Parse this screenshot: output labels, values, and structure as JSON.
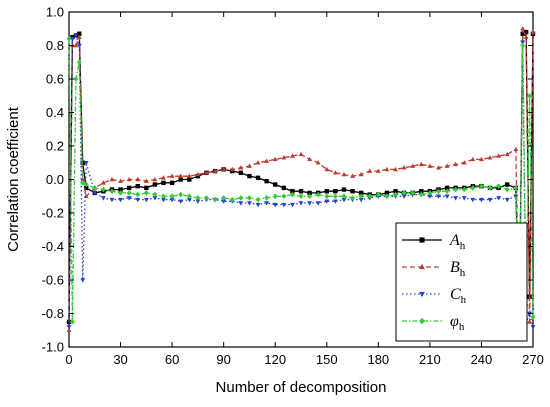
{
  "chart_data": {
    "type": "line",
    "xlabel": "Number of decomposition",
    "ylabel": "Correlation coefficient",
    "xlim": [
      0,
      270
    ],
    "ylim": [
      -1.0,
      1.0
    ],
    "xticks": [
      "0",
      "30",
      "60",
      "90",
      "120",
      "150",
      "180",
      "210",
      "240",
      "270"
    ],
    "yticks": [
      "1.0",
      "0.8",
      "0.6",
      "0.4",
      "0.2",
      "0.0",
      "-0.2",
      "-0.4",
      "-0.6",
      "-0.8",
      "-1.0"
    ],
    "grid": false,
    "legend_position": "bottom-right",
    "series": [
      {
        "name": "A",
        "name_sub": "h",
        "color": "#000000",
        "line_style": "solid",
        "marker": "square",
        "x": [
          0,
          2,
          4,
          6,
          8,
          10,
          15,
          20,
          25,
          30,
          35,
          40,
          45,
          50,
          55,
          60,
          65,
          70,
          75,
          80,
          85,
          90,
          95,
          100,
          105,
          110,
          115,
          120,
          125,
          130,
          135,
          140,
          145,
          150,
          155,
          160,
          165,
          170,
          175,
          180,
          185,
          190,
          195,
          200,
          205,
          210,
          215,
          220,
          225,
          230,
          235,
          240,
          245,
          250,
          255,
          260,
          262,
          264,
          266,
          268,
          270
        ],
        "y": [
          -0.85,
          0.85,
          0.86,
          0.87,
          0.1,
          -0.05,
          -0.08,
          -0.07,
          -0.06,
          -0.06,
          -0.05,
          -0.04,
          -0.05,
          -0.03,
          -0.02,
          -0.02,
          0.0,
          0.0,
          0.02,
          0.04,
          0.05,
          0.06,
          0.05,
          0.04,
          0.02,
          0.01,
          -0.01,
          -0.03,
          -0.05,
          -0.07,
          -0.07,
          -0.08,
          -0.08,
          -0.07,
          -0.07,
          -0.06,
          -0.07,
          -0.08,
          -0.09,
          -0.09,
          -0.08,
          -0.07,
          -0.08,
          -0.08,
          -0.07,
          -0.07,
          -0.06,
          -0.05,
          -0.05,
          -0.05,
          -0.04,
          -0.04,
          -0.05,
          -0.05,
          -0.03,
          -0.05,
          -0.86,
          0.87,
          0.88,
          -0.7,
          0.87
        ]
      },
      {
        "name": "B",
        "name_sub": "h",
        "color": "#c0392b",
        "line_style": "dashed",
        "marker": "triangle-up",
        "x": [
          0,
          2,
          4,
          6,
          8,
          10,
          15,
          20,
          25,
          30,
          35,
          40,
          45,
          50,
          55,
          60,
          65,
          70,
          75,
          80,
          85,
          90,
          95,
          100,
          105,
          110,
          115,
          120,
          125,
          130,
          135,
          140,
          145,
          150,
          155,
          160,
          165,
          170,
          175,
          180,
          185,
          190,
          195,
          200,
          205,
          210,
          215,
          220,
          225,
          230,
          235,
          240,
          245,
          250,
          255,
          260,
          262,
          264,
          266,
          268,
          270
        ],
        "y": [
          -0.9,
          0.8,
          0.8,
          0.85,
          0.0,
          -0.1,
          -0.05,
          -0.02,
          0.0,
          -0.01,
          0.0,
          0.0,
          -0.01,
          0.0,
          0.01,
          0.02,
          0.02,
          0.02,
          0.03,
          0.04,
          0.05,
          0.06,
          0.06,
          0.07,
          0.08,
          0.1,
          0.11,
          0.12,
          0.13,
          0.14,
          0.15,
          0.12,
          0.1,
          0.06,
          0.04,
          0.03,
          0.02,
          0.03,
          0.05,
          0.05,
          0.06,
          0.06,
          0.07,
          0.08,
          0.09,
          0.08,
          0.07,
          0.08,
          0.09,
          0.1,
          0.12,
          0.12,
          0.13,
          0.14,
          0.15,
          0.18,
          -0.9,
          0.9,
          0.85,
          -0.85,
          0.88
        ]
      },
      {
        "name": "C",
        "name_sub": "h",
        "color": "#1f3fd6",
        "line_style": "dotted",
        "marker": "triangle-down",
        "x": [
          0,
          2,
          4,
          6,
          8,
          10,
          15,
          20,
          25,
          30,
          35,
          40,
          45,
          50,
          55,
          60,
          65,
          70,
          75,
          80,
          85,
          90,
          95,
          100,
          105,
          110,
          115,
          120,
          125,
          130,
          135,
          140,
          145,
          150,
          155,
          160,
          165,
          170,
          175,
          180,
          185,
          190,
          195,
          200,
          205,
          210,
          215,
          220,
          225,
          230,
          235,
          240,
          245,
          250,
          255,
          260,
          262,
          264,
          266,
          268,
          270
        ],
        "y": [
          -0.88,
          0.84,
          0.86,
          0.8,
          -0.6,
          0.1,
          -0.08,
          -0.11,
          -0.12,
          -0.12,
          -0.11,
          -0.12,
          -0.12,
          -0.11,
          -0.12,
          -0.12,
          -0.13,
          -0.12,
          -0.13,
          -0.12,
          -0.12,
          -0.13,
          -0.13,
          -0.14,
          -0.14,
          -0.15,
          -0.14,
          -0.15,
          -0.15,
          -0.15,
          -0.14,
          -0.14,
          -0.14,
          -0.13,
          -0.13,
          -0.12,
          -0.12,
          -0.12,
          -0.11,
          -0.1,
          -0.1,
          -0.1,
          -0.1,
          -0.09,
          -0.09,
          -0.1,
          -0.1,
          -0.1,
          -0.11,
          -0.11,
          -0.12,
          -0.12,
          -0.12,
          -0.11,
          -0.12,
          -0.1,
          -0.82,
          0.82,
          -0.84,
          -0.8,
          -0.88
        ]
      },
      {
        "name": "φ",
        "name_sub": "h",
        "color": "#33cc33",
        "line_style": "dash-dot",
        "marker": "diamond",
        "x": [
          0,
          2,
          4,
          6,
          8,
          10,
          15,
          20,
          25,
          30,
          35,
          40,
          45,
          50,
          55,
          60,
          65,
          70,
          75,
          80,
          85,
          90,
          95,
          100,
          105,
          110,
          115,
          120,
          125,
          130,
          135,
          140,
          145,
          150,
          155,
          160,
          165,
          170,
          175,
          180,
          185,
          190,
          195,
          200,
          205,
          210,
          215,
          220,
          225,
          230,
          235,
          240,
          245,
          250,
          255,
          260,
          262,
          264,
          266,
          268,
          270
        ],
        "y": [
          0.84,
          -0.85,
          0.6,
          0.7,
          -0.02,
          -0.03,
          -0.05,
          -0.06,
          -0.07,
          -0.08,
          -0.08,
          -0.09,
          -0.08,
          -0.09,
          -0.1,
          -0.1,
          -0.09,
          -0.1,
          -0.11,
          -0.11,
          -0.12,
          -0.11,
          -0.12,
          -0.11,
          -0.11,
          -0.12,
          -0.11,
          -0.1,
          -0.1,
          -0.09,
          -0.1,
          -0.1,
          -0.09,
          -0.1,
          -0.1,
          -0.1,
          -0.11,
          -0.1,
          -0.1,
          -0.09,
          -0.1,
          -0.09,
          -0.08,
          -0.08,
          -0.09,
          -0.08,
          -0.07,
          -0.07,
          -0.06,
          -0.06,
          -0.05,
          -0.04,
          -0.05,
          -0.04,
          -0.06,
          -0.05,
          -0.84,
          0.8,
          -0.75,
          0.5,
          -0.82
        ]
      }
    ]
  }
}
